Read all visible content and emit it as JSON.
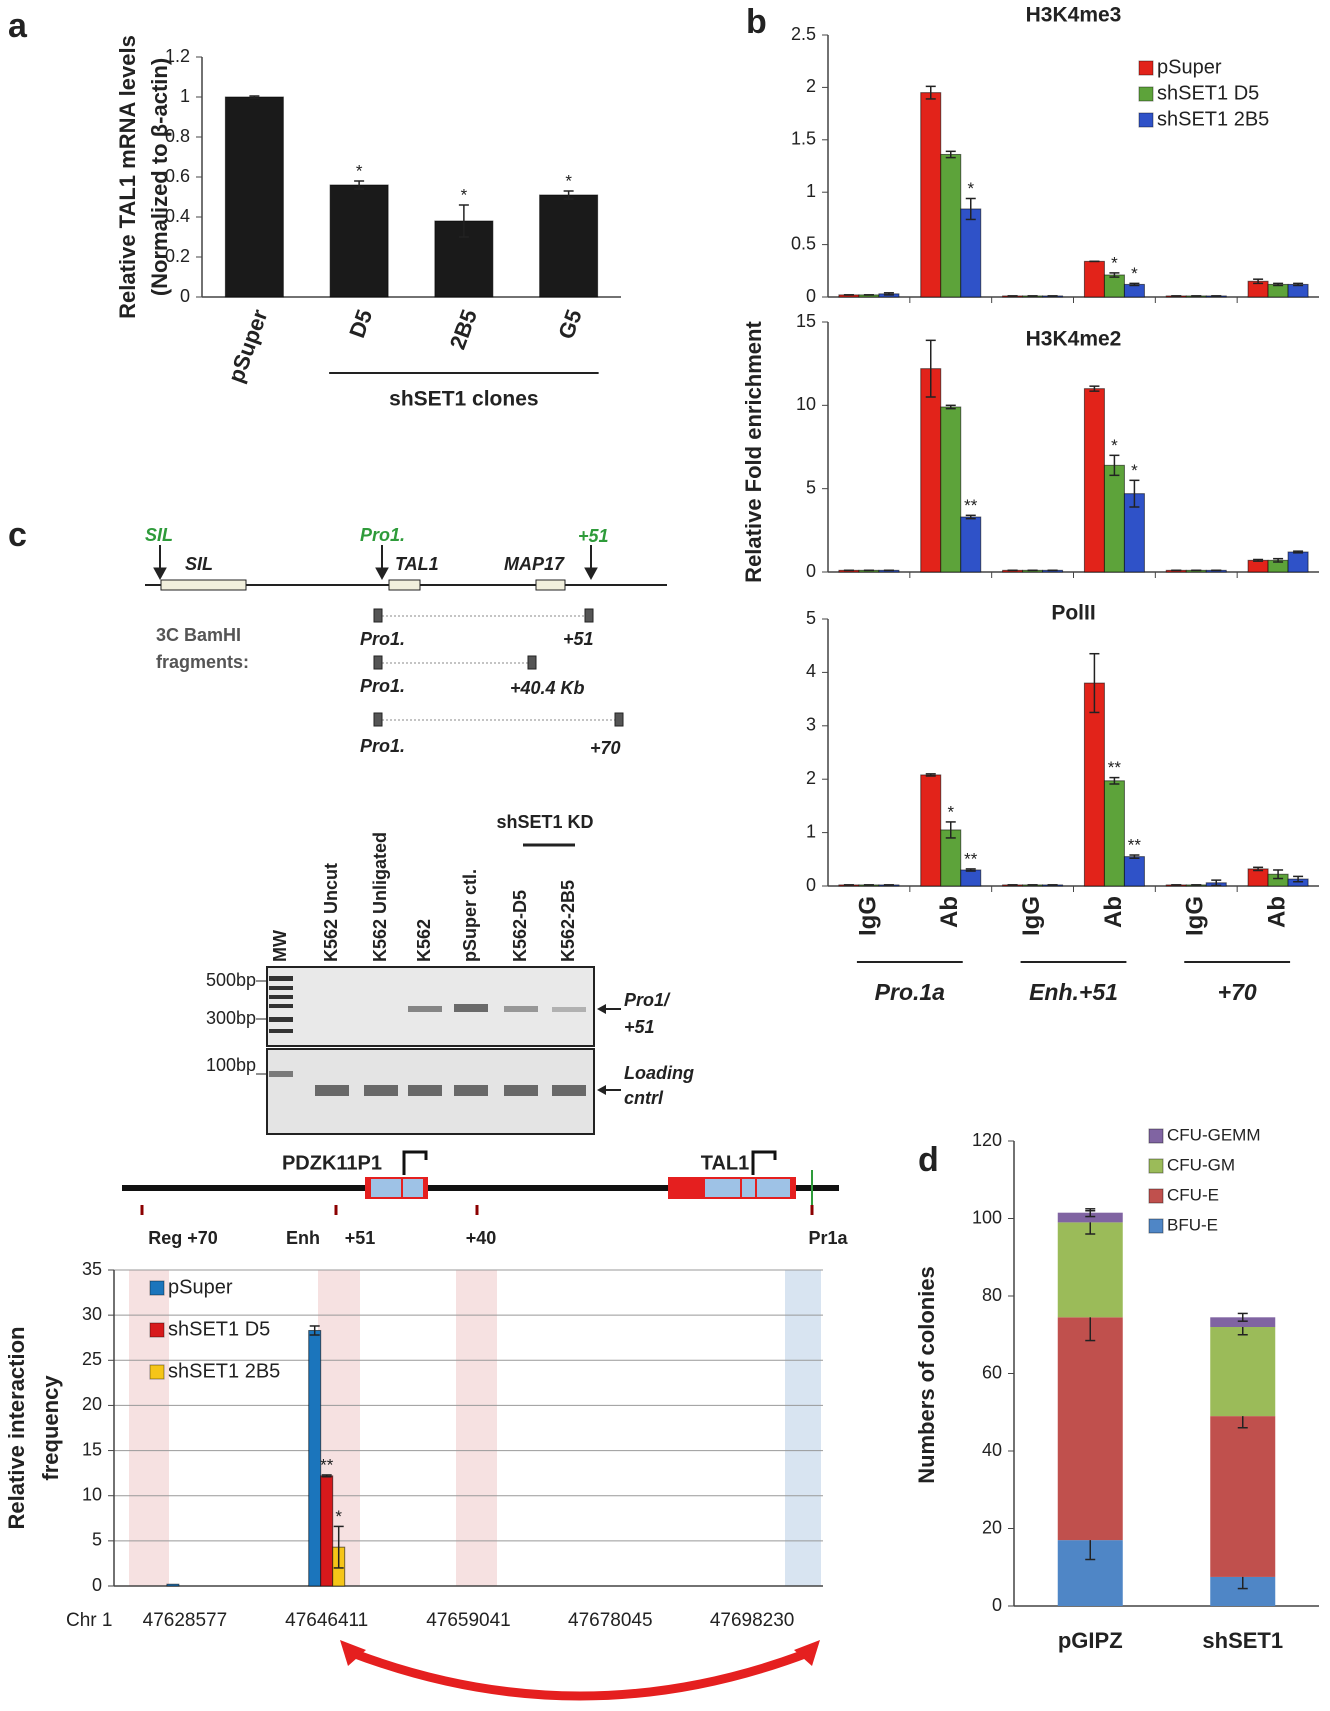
{
  "panel_labels": [
    "a",
    "b",
    "c",
    "d"
  ],
  "chart_data": [
    {
      "type": "bar",
      "ylabel": [
        "Relative TAL1 mRNA levels",
        "(Normalized to β-actin)"
      ],
      "categories": [
        "pSuper",
        "D5",
        "2B5",
        "G5"
      ],
      "group_label": "shSET1 clones",
      "values": [
        1.0,
        0.56,
        0.38,
        0.51
      ],
      "errors": [
        0.005,
        0.02,
        0.08,
        0.02
      ],
      "significance": [
        null,
        "*",
        "*",
        "*"
      ],
      "color": "#1a1a1a",
      "ylim": [
        0,
        1.2
      ],
      "yticks": [
        0,
        0.2,
        0.4,
        0.6,
        0.8,
        1,
        1.2
      ],
      "grid": false
    },
    {
      "type": "bar",
      "title": "H3K4me3",
      "ylabel": [
        "Relative Fold enrichment"
      ],
      "legend": "top-right",
      "ylim": [
        0,
        2.5
      ],
      "yticks": [
        0,
        0.5,
        1,
        1.5,
        2,
        2.5
      ],
      "grid": false,
      "series": [
        {
          "name": "pSuper",
          "color": "#e2231a",
          "values": [
            0.02,
            1.95,
            0.01,
            0.34,
            0.01,
            0.15
          ],
          "errors": [
            0,
            0.06,
            0,
            0,
            0,
            0.02
          ],
          "significance": [
            null,
            null,
            null,
            null,
            null,
            null
          ]
        },
        {
          "name": "shSET1 D5",
          "color": "#5da33a",
          "values": [
            0.02,
            1.36,
            0.01,
            0.21,
            0.01,
            0.12
          ],
          "errors": [
            0,
            0.03,
            0,
            0.02,
            0,
            0.01
          ],
          "significance": [
            null,
            null,
            null,
            "*",
            null,
            null
          ]
        },
        {
          "name": "shSET1 2B5",
          "color": "#2f52c8",
          "values": [
            0.03,
            0.84,
            0.01,
            0.12,
            0.01,
            0.12
          ],
          "errors": [
            0.01,
            0.1,
            0,
            0.01,
            0,
            0.01
          ],
          "significance": [
            null,
            "*",
            null,
            "*",
            null,
            null
          ]
        }
      ]
    },
    {
      "type": "bar",
      "title": "H3K4me2",
      "ylim": [
        0,
        15
      ],
      "yticks": [
        0,
        5,
        10,
        15
      ],
      "grid": false,
      "series": [
        {
          "color": "#e2231a",
          "values": [
            0.1,
            12.2,
            0.1,
            11.0,
            0.1,
            0.7
          ],
          "errors": [
            0,
            1.7,
            0,
            0.15,
            0,
            0.05
          ],
          "significance": [
            null,
            null,
            null,
            null,
            null,
            null
          ]
        },
        {
          "color": "#5da33a",
          "values": [
            0.1,
            9.9,
            0.1,
            6.4,
            0.1,
            0.7
          ],
          "errors": [
            0,
            0.1,
            0,
            0.6,
            0,
            0.1
          ],
          "significance": [
            null,
            null,
            null,
            "*",
            null,
            null
          ]
        },
        {
          "color": "#2f52c8",
          "values": [
            0.1,
            3.3,
            0.1,
            4.7,
            0.1,
            1.2
          ],
          "errors": [
            0,
            0.1,
            0,
            0.8,
            0,
            0.05
          ],
          "significance": [
            null,
            "**",
            null,
            "*",
            null,
            null
          ]
        }
      ]
    },
    {
      "type": "bar",
      "title": "PolII",
      "ylim": [
        0,
        5
      ],
      "yticks": [
        0,
        1,
        2,
        3,
        4,
        5
      ],
      "grid": false,
      "categories": [
        "IgG",
        "Ab",
        "IgG",
        "Ab",
        "IgG",
        "Ab"
      ],
      "groups": [
        "Pro.1a",
        "Enh.+51",
        "+70"
      ],
      "series": [
        {
          "color": "#e2231a",
          "values": [
            0.02,
            2.08,
            0.02,
            3.8,
            0.02,
            0.32
          ],
          "errors": [
            0,
            0.02,
            0,
            0.55,
            0,
            0.03
          ],
          "significance": [
            null,
            null,
            null,
            null,
            null,
            null
          ]
        },
        {
          "color": "#5da33a",
          "values": [
            0.02,
            1.05,
            0.02,
            1.97,
            0.02,
            0.22
          ],
          "errors": [
            0,
            0.15,
            0,
            0.06,
            0,
            0.08
          ],
          "significance": [
            null,
            "*",
            null,
            "**",
            null,
            null
          ]
        },
        {
          "color": "#2f52c8",
          "values": [
            0.02,
            0.3,
            0.02,
            0.55,
            0.06,
            0.13
          ],
          "errors": [
            0,
            0.02,
            0,
            0.03,
            0.05,
            0.05
          ],
          "significance": [
            null,
            "**",
            null,
            "**",
            null,
            null
          ]
        }
      ]
    },
    {
      "type": "bar",
      "ylabel": [
        "Relative interaction",
        "frequency"
      ],
      "xlabel": "Chr 1",
      "legend": "top-left",
      "categories": [
        "47628577",
        "47646411",
        "47659041",
        "47678045",
        "47698230"
      ],
      "ylim": [
        0,
        35
      ],
      "yticks": [
        0,
        5,
        10,
        15,
        20,
        25,
        30,
        35
      ],
      "grid": true,
      "series": [
        {
          "name": "pSuper",
          "color": "#1b75bc",
          "values": [
            0.2,
            28.3,
            null,
            null,
            null
          ],
          "errors": [
            null,
            0.5,
            null,
            null,
            null
          ],
          "significance": [
            null,
            null,
            null,
            null,
            null
          ]
        },
        {
          "name": "shSET1 D5",
          "color": "#d7191c",
          "values": [
            null,
            12.2,
            null,
            null,
            null
          ],
          "errors": [
            null,
            0.1,
            null,
            null,
            null
          ],
          "significance": [
            null,
            "**",
            null,
            null,
            null
          ]
        },
        {
          "name": "shSET1 2B5",
          "color": "#f5c518",
          "values": [
            null,
            4.3,
            null,
            null,
            null
          ],
          "errors": [
            null,
            2.3,
            null,
            null,
            null
          ],
          "significance": [
            null,
            "*",
            null,
            null,
            null
          ]
        }
      ]
    },
    {
      "type": "bar",
      "stacked": true,
      "ylabel": [
        "Numbers of colonies"
      ],
      "legend": "top-right",
      "categories": [
        "pGIPZ",
        "shSET1"
      ],
      "ylim": [
        0,
        120
      ],
      "yticks": [
        0,
        20,
        40,
        60,
        80,
        100,
        120
      ],
      "grid": false,
      "series": [
        {
          "name": "BFU-E",
          "color": "#4f86c6",
          "values": [
            17,
            7.5
          ],
          "errors": [
            5,
            3
          ]
        },
        {
          "name": "CFU-E",
          "color": "#c0504d",
          "values": [
            57.5,
            41.5
          ],
          "errors": [
            6,
            3
          ]
        },
        {
          "name": "CFU-GM",
          "color": "#9bbb59",
          "values": [
            24.5,
            23
          ],
          "errors": [
            3,
            2
          ]
        },
        {
          "name": "CFU-GEMM",
          "color": "#8064a2",
          "values": [
            2.5,
            2.5
          ],
          "errors": [
            1,
            1
          ]
        }
      ]
    }
  ],
  "map": {
    "markers": [
      "SIL",
      "Pro1.",
      "+51"
    ],
    "genes": [
      "SIL",
      "TAL1",
      "MAP17"
    ],
    "fragments_label": [
      "3C BamHI",
      "fragments:"
    ],
    "fragments": [
      [
        "Pro1.",
        "+51"
      ],
      [
        "Pro1.",
        "+40.4 Kb"
      ],
      [
        "Pro1.",
        "+70"
      ]
    ]
  },
  "gel": {
    "lanes": [
      "MW",
      "K562 Uncut",
      "K562 Unligated",
      "K562",
      "pSuper ctl.",
      "K562-D5",
      "K562-2B5"
    ],
    "group": "shSET1 KD",
    "sizes": [
      "500bp",
      "300bp",
      "100bp"
    ],
    "products": [
      [
        "Pro1/",
        "+51"
      ],
      [
        "Loading",
        "cntrl"
      ]
    ]
  },
  "locus": {
    "genes": [
      "PDZK11P1",
      "TAL1"
    ],
    "sites": [
      "Reg +70",
      "Enh",
      "+51",
      "+40",
      "Pr1a"
    ]
  }
}
